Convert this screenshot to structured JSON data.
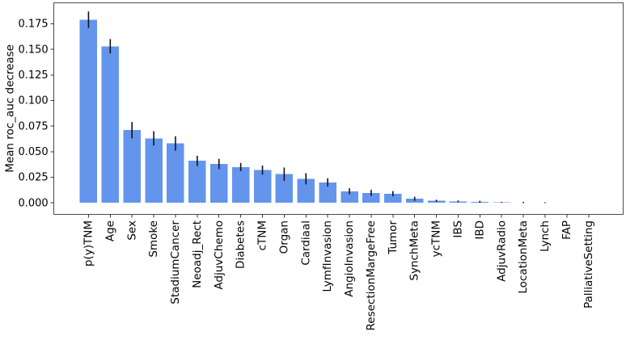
{
  "chart_data": {
    "type": "bar",
    "title": "",
    "xlabel": "",
    "ylabel": "Mean roc_auc decrease",
    "categories": [
      "p(y)TNM",
      "Age",
      "Sex",
      "Smoke",
      "StadiumCancer",
      "Neoadj_Rect",
      "AdjuvChemo",
      "Diabetes",
      "cTNM",
      "Organ",
      "Cardiaal",
      "LymfInvasion",
      "AngioInvasion",
      "ResectionMargeFree",
      "Tumor",
      "SynchMeta",
      "ycTNM",
      "IBS",
      "IBD",
      "AdjuvRadio",
      "LocationMeta",
      "Lynch",
      "FAP",
      "PalliativeSetting"
    ],
    "values": [
      0.179,
      0.153,
      0.071,
      0.063,
      0.058,
      0.041,
      0.038,
      0.035,
      0.032,
      0.028,
      0.0235,
      0.02,
      0.0113,
      0.0097,
      0.009,
      0.004,
      0.002,
      0.0015,
      0.001,
      0.0005,
      0.0003,
      0.0002,
      0.0,
      0.0
    ],
    "errors": [
      0.008,
      0.007,
      0.008,
      0.007,
      0.007,
      0.005,
      0.005,
      0.004,
      0.0045,
      0.0065,
      0.0055,
      0.004,
      0.003,
      0.003,
      0.0025,
      0.002,
      0.001,
      0.0008,
      0.001,
      0.0004,
      0.0006,
      0.0004,
      0.0,
      0.0
    ],
    "error_bars_shown": true,
    "yticks": [
      0,
      0.025,
      0.05,
      0.075,
      0.1,
      0.125,
      0.15,
      0.175
    ],
    "ytick_labels": [
      "0.000",
      "0.025",
      "0.050",
      "0.075",
      "0.100",
      "0.125",
      "0.150",
      "0.175"
    ],
    "ylim": [
      -0.0113,
      0.1956
    ],
    "xlim": [
      -1.59,
      24.59
    ],
    "bar_width": 0.8,
    "x_tick_rotation_deg": 90,
    "grid": false,
    "legend": null,
    "colors": {
      "bar": "#6495ED",
      "error_bar": "#111111",
      "spine": "#4a4a4a",
      "tick": "#333333",
      "text": "#000000",
      "background": "#ffffff"
    }
  }
}
